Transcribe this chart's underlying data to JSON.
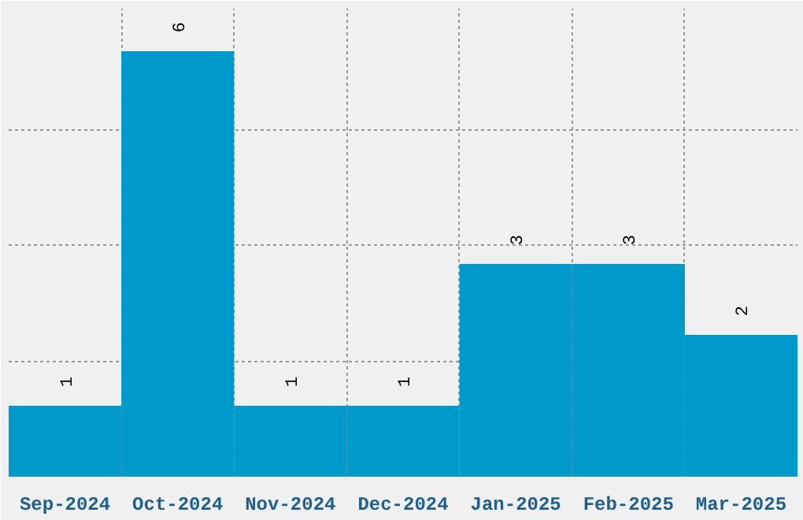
{
  "chart_data": {
    "type": "bar",
    "categories": [
      "Sep-2024",
      "Oct-2024",
      "Nov-2024",
      "Dec-2024",
      "Jan-2025",
      "Feb-2025",
      "Mar-2025"
    ],
    "values": [
      1,
      6,
      1,
      1,
      3,
      3,
      2
    ],
    "color": "#0099cc",
    "ylim": [
      0,
      6.6
    ],
    "yticks": [
      {
        "value": 1.63,
        "label": null
      },
      {
        "value": 3.26,
        "label": null
      },
      {
        "value": 4.9,
        "label": null
      }
    ],
    "grid": true,
    "data_labels": true
  }
}
